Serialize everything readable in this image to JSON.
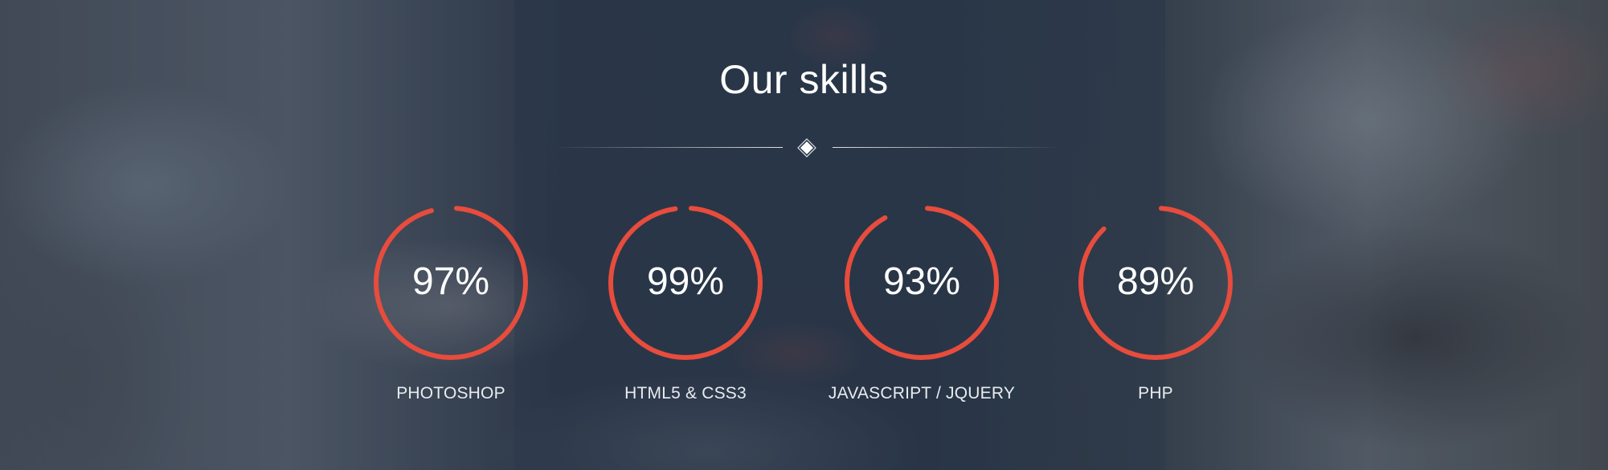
{
  "section": {
    "title": "Our skills"
  },
  "skills": [
    {
      "label": "PHOTOSHOP",
      "percent_text": "97%",
      "percent": 97
    },
    {
      "label": "HTML5 & CSS3",
      "percent_text": "99%",
      "percent": 99
    },
    {
      "label": "JAVASCRIPT / JQUERY",
      "percent_text": "93%",
      "percent": 93
    },
    {
      "label": "PHP",
      "percent_text": "89%",
      "percent": 89
    }
  ],
  "colors": {
    "accent": "#e74c3c",
    "text": "#ffffff",
    "divider": "#ffffff"
  },
  "icons": {
    "divider_ornament": "diamond-icon"
  }
}
